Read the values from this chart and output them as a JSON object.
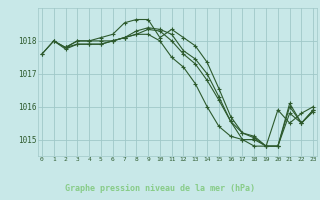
{
  "background_color": "#c8e8e8",
  "plot_bg_color": "#c8e8e8",
  "grid_color": "#a0c8c8",
  "line_color": "#2d5a2d",
  "marker_color": "#2d5a2d",
  "text_color": "#2d5a2d",
  "bottom_bar_color": "#336633",
  "bottom_text_color": "#88cc88",
  "title": "Graphe pression niveau de la mer (hPa)",
  "ylabel_ticks": [
    1015,
    1016,
    1017,
    1018
  ],
  "xlim": [
    -0.3,
    23.3
  ],
  "ylim": [
    1014.5,
    1019.0
  ],
  "series": [
    {
      "x": [
        0,
        1,
        2,
        3,
        4,
        5,
        6,
        7,
        8,
        9,
        10,
        11,
        12,
        13,
        14,
        15,
        16,
        17,
        18,
        19,
        20,
        21,
        22,
        23
      ],
      "y": [
        1017.6,
        1018.0,
        1017.8,
        1018.0,
        1018.0,
        1018.1,
        1018.2,
        1018.55,
        1018.65,
        1018.65,
        1018.1,
        1018.35,
        1018.1,
        1017.85,
        1017.35,
        1016.55,
        1015.7,
        1015.2,
        1015.1,
        1014.8,
        1014.8,
        1015.8,
        1015.5,
        1015.9
      ]
    },
    {
      "x": [
        1,
        2,
        3,
        4,
        5,
        6,
        7,
        8,
        9,
        10,
        11,
        12,
        13,
        14,
        15,
        16,
        17,
        18,
        19,
        20,
        21,
        22,
        23
      ],
      "y": [
        1018.0,
        1017.75,
        1017.9,
        1017.9,
        1017.9,
        1018.0,
        1018.1,
        1018.3,
        1018.4,
        1018.35,
        1018.2,
        1017.7,
        1017.45,
        1017.0,
        1016.3,
        1015.55,
        1015.0,
        1015.0,
        1014.8,
        1014.8,
        1016.0,
        1015.5,
        1015.85
      ]
    },
    {
      "x": [
        2,
        3,
        4,
        5,
        6,
        7,
        8,
        9,
        10,
        11,
        12,
        13,
        14,
        15,
        16,
        17,
        18,
        19,
        20,
        21,
        22,
        23
      ],
      "y": [
        1017.8,
        1017.9,
        1017.9,
        1017.9,
        1018.0,
        1018.1,
        1018.2,
        1018.35,
        1018.3,
        1018.0,
        1017.6,
        1017.3,
        1016.8,
        1016.2,
        1015.55,
        1015.2,
        1015.05,
        1014.8,
        1014.8,
        1016.1,
        1015.5,
        1015.9
      ]
    },
    {
      "x": [
        0,
        1,
        2,
        3,
        4,
        5,
        6,
        7,
        8,
        9,
        10,
        11,
        12,
        13,
        14,
        15,
        16,
        17,
        18,
        19,
        20,
        21,
        22,
        23
      ],
      "y": [
        1017.6,
        1018.0,
        1017.8,
        1018.0,
        1018.0,
        1018.0,
        1018.0,
        1018.1,
        1018.2,
        1018.2,
        1018.0,
        1017.5,
        1017.2,
        1016.7,
        1016.0,
        1015.4,
        1015.1,
        1015.0,
        1014.8,
        1014.8,
        1015.9,
        1015.5,
        1015.8,
        1016.0
      ]
    }
  ],
  "xtick_labels": [
    "0",
    "1",
    "2",
    "3",
    "4",
    "5",
    "6",
    "7",
    "8",
    "9",
    "10",
    "11",
    "12",
    "13",
    "14",
    "15",
    "16",
    "17",
    "18",
    "19",
    "20",
    "21",
    "22",
    "23"
  ]
}
